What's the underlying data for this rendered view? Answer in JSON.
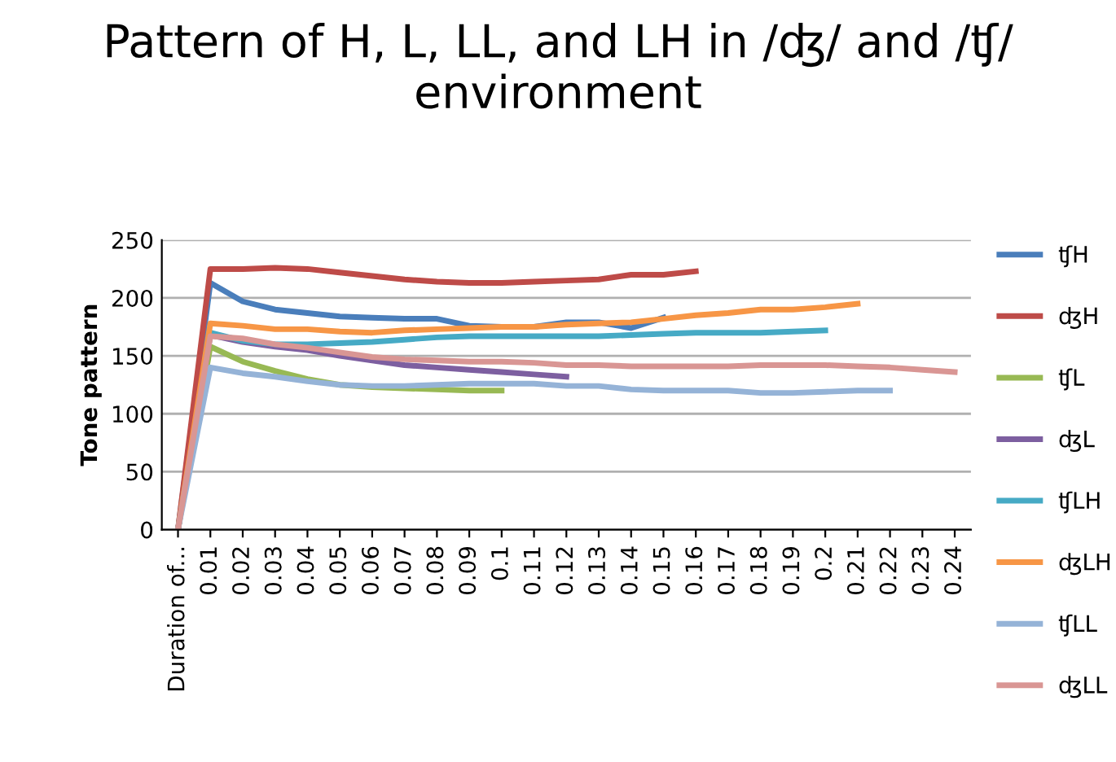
{
  "chart_data": {
    "type": "line",
    "title": "Pattern of H, L, LL, and LH in /ʤ/ and /ʧ/ environment",
    "ylabel": "Tone pattern",
    "categories": [
      "Duration of...",
      "0.01",
      "0.02",
      "0.03",
      "0.04",
      "0.05",
      "0.06",
      "0.07",
      "0.08",
      "0.09",
      "0.1",
      "0.11",
      "0.12",
      "0.13",
      "0.14",
      "0.15",
      "0.16",
      "0.17",
      "0.18",
      "0.19",
      "0.2",
      "0.21",
      "0.22",
      "0.23",
      "0.24"
    ],
    "series": [
      {
        "name": "ʧH",
        "color": "#4a7ebb",
        "values": [
          0,
          213,
          197,
          190,
          187,
          184,
          183,
          182,
          182,
          176,
          175,
          175,
          179,
          179,
          174,
          183,
          null,
          null,
          null,
          null,
          null,
          null,
          null,
          null,
          null
        ]
      },
      {
        "name": "ʤH",
        "color": "#be4b48",
        "values": [
          0,
          225,
          225,
          226,
          225,
          222,
          219,
          216,
          214,
          213,
          213,
          214,
          215,
          216,
          220,
          220,
          223,
          null,
          null,
          null,
          null,
          null,
          null,
          null,
          null
        ]
      },
      {
        "name": "ʧL",
        "color": "#98b954",
        "values": [
          0,
          158,
          145,
          137,
          130,
          125,
          123,
          122,
          121,
          120,
          120,
          null,
          null,
          null,
          null,
          null,
          null,
          null,
          null,
          null,
          null,
          null,
          null,
          null,
          null
        ]
      },
      {
        "name": "ʤL",
        "color": "#7d5fa0",
        "values": [
          0,
          168,
          162,
          158,
          155,
          150,
          146,
          142,
          140,
          138,
          136,
          134,
          132,
          null,
          null,
          null,
          null,
          null,
          null,
          null,
          null,
          null,
          null,
          null,
          null
        ]
      },
      {
        "name": "ʧLH",
        "color": "#46aac5",
        "values": [
          0,
          170,
          163,
          160,
          160,
          161,
          162,
          164,
          166,
          167,
          167,
          167,
          167,
          167,
          168,
          169,
          170,
          170,
          170,
          171,
          172,
          null,
          null,
          null,
          null
        ]
      },
      {
        "name": "ʤLH",
        "color": "#f79646",
        "values": [
          0,
          178,
          176,
          173,
          173,
          171,
          170,
          172,
          173,
          174,
          175,
          175,
          177,
          178,
          179,
          182,
          185,
          187,
          190,
          190,
          192,
          195,
          null,
          null,
          null
        ]
      },
      {
        "name": "ʧLL",
        "color": "#95b3d7",
        "values": [
          0,
          140,
          135,
          132,
          128,
          125,
          124,
          124,
          125,
          126,
          126,
          126,
          124,
          124,
          121,
          120,
          120,
          120,
          118,
          118,
          119,
          120,
          120,
          null,
          null
        ]
      },
      {
        "name": "ʤLL",
        "color": "#d99694",
        "values": [
          0,
          167,
          165,
          160,
          157,
          153,
          149,
          147,
          146,
          145,
          145,
          144,
          142,
          142,
          141,
          141,
          141,
          141,
          142,
          142,
          142,
          141,
          140,
          138,
          136
        ]
      }
    ],
    "ylim": [
      0,
      250
    ],
    "yticks": [
      0,
      50,
      100,
      150,
      200,
      250
    ],
    "grid": "y",
    "legend": "right",
    "marker": "none",
    "line_style": "solid"
  }
}
